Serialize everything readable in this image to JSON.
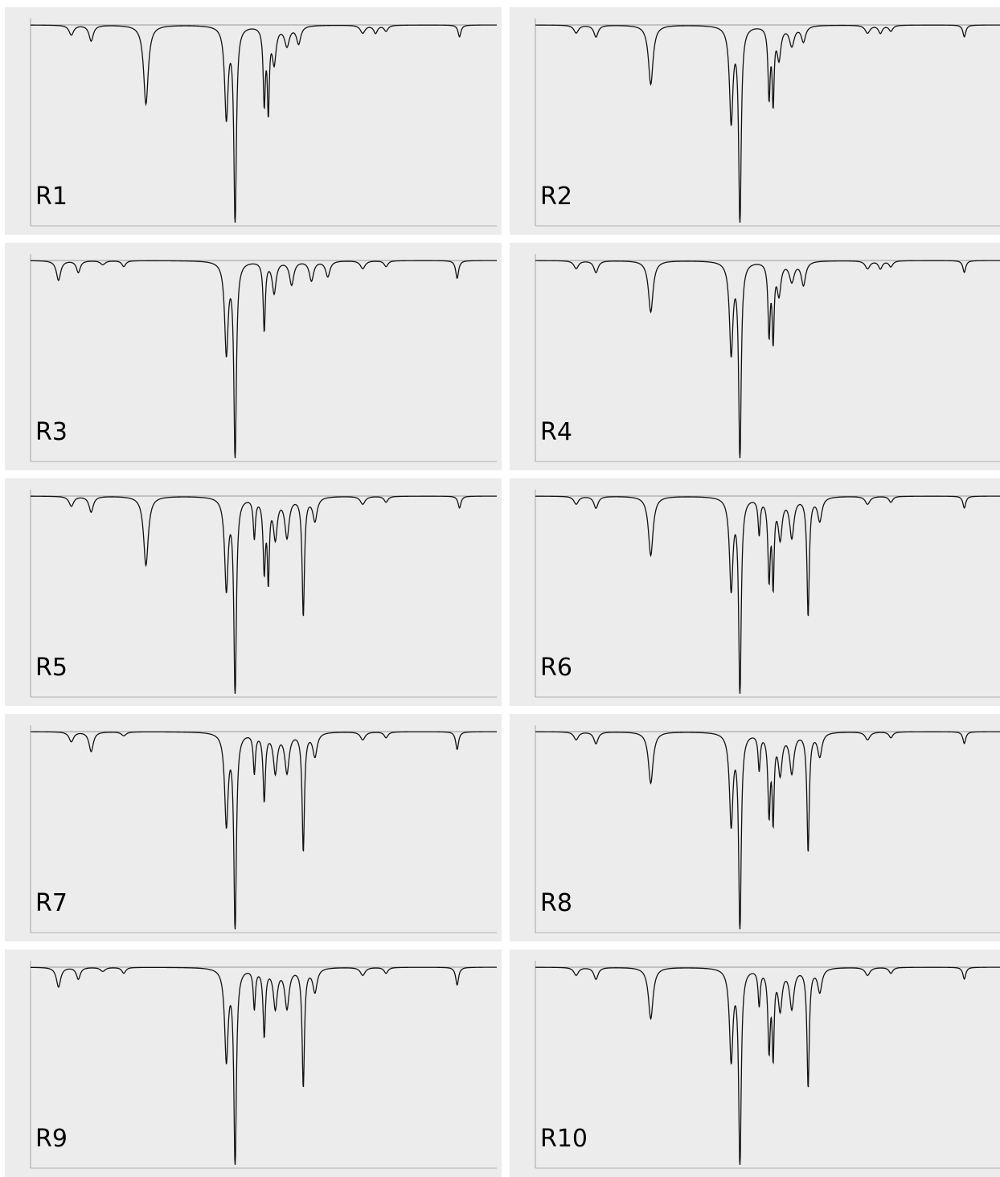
{
  "chart_data": {
    "type": "line",
    "panels": [
      {
        "label": "R1",
        "peaks": [
          [
            3650,
            0.05,
            24
          ],
          [
            3480,
            0.08,
            22
          ],
          [
            3010,
            0.4,
            24
          ],
          [
            2320,
            0.46,
            18
          ],
          [
            2245,
            1.0,
            13
          ],
          [
            1995,
            0.38,
            11
          ],
          [
            1960,
            0.41,
            10
          ],
          [
            1910,
            0.18,
            20
          ],
          [
            1800,
            0.1,
            25
          ],
          [
            1700,
            0.09,
            22
          ],
          [
            1150,
            0.04,
            25
          ],
          [
            1040,
            0.04,
            20
          ],
          [
            950,
            0.03,
            20
          ],
          [
            320,
            0.06,
            15
          ]
        ]
      },
      {
        "label": "R2",
        "peaks": [
          [
            3650,
            0.04,
            24
          ],
          [
            3480,
            0.06,
            22
          ],
          [
            3010,
            0.3,
            24
          ],
          [
            2320,
            0.48,
            18
          ],
          [
            2245,
            1.0,
            13
          ],
          [
            1995,
            0.35,
            11
          ],
          [
            1960,
            0.37,
            10
          ],
          [
            1910,
            0.16,
            20
          ],
          [
            1800,
            0.1,
            25
          ],
          [
            1700,
            0.08,
            22
          ],
          [
            1150,
            0.04,
            25
          ],
          [
            1040,
            0.04,
            20
          ],
          [
            950,
            0.03,
            20
          ],
          [
            320,
            0.06,
            15
          ]
        ]
      },
      {
        "label": "R3",
        "peaks": [
          [
            3760,
            0.1,
            22
          ],
          [
            3590,
            0.06,
            20
          ],
          [
            3380,
            0.02,
            25
          ],
          [
            3200,
            0.03,
            20
          ],
          [
            2320,
            0.46,
            18
          ],
          [
            2245,
            1.0,
            13
          ],
          [
            1995,
            0.35,
            11
          ],
          [
            1910,
            0.16,
            20
          ],
          [
            1760,
            0.12,
            22
          ],
          [
            1590,
            0.1,
            22
          ],
          [
            1450,
            0.08,
            22
          ],
          [
            1150,
            0.04,
            25
          ],
          [
            950,
            0.03,
            20
          ],
          [
            340,
            0.09,
            15
          ]
        ]
      },
      {
        "label": "R4",
        "peaks": [
          [
            3650,
            0.04,
            24
          ],
          [
            3480,
            0.06,
            22
          ],
          [
            3010,
            0.26,
            24
          ],
          [
            2320,
            0.46,
            18
          ],
          [
            2245,
            1.0,
            13
          ],
          [
            1995,
            0.36,
            11
          ],
          [
            1960,
            0.38,
            10
          ],
          [
            1910,
            0.16,
            20
          ],
          [
            1800,
            0.1,
            25
          ],
          [
            1700,
            0.12,
            22
          ],
          [
            1150,
            0.04,
            25
          ],
          [
            1040,
            0.04,
            20
          ],
          [
            950,
            0.03,
            20
          ],
          [
            320,
            0.06,
            15
          ]
        ]
      },
      {
        "label": "R5",
        "peaks": [
          [
            3650,
            0.05,
            24
          ],
          [
            3480,
            0.08,
            22
          ],
          [
            3010,
            0.35,
            24
          ],
          [
            2320,
            0.46,
            18
          ],
          [
            2245,
            1.0,
            13
          ],
          [
            2080,
            0.2,
            11
          ],
          [
            1995,
            0.36,
            12
          ],
          [
            1960,
            0.4,
            10
          ],
          [
            1900,
            0.2,
            20
          ],
          [
            1800,
            0.2,
            22
          ],
          [
            1660,
            0.6,
            12
          ],
          [
            1560,
            0.12,
            22
          ],
          [
            1150,
            0.04,
            25
          ],
          [
            950,
            0.03,
            20
          ],
          [
            320,
            0.06,
            15
          ]
        ]
      },
      {
        "label": "R6",
        "peaks": [
          [
            3650,
            0.04,
            24
          ],
          [
            3480,
            0.06,
            22
          ],
          [
            3010,
            0.3,
            24
          ],
          [
            2320,
            0.46,
            18
          ],
          [
            2245,
            1.0,
            13
          ],
          [
            2080,
            0.18,
            11
          ],
          [
            1995,
            0.4,
            12
          ],
          [
            1960,
            0.42,
            10
          ],
          [
            1900,
            0.2,
            20
          ],
          [
            1800,
            0.2,
            22
          ],
          [
            1660,
            0.6,
            12
          ],
          [
            1560,
            0.12,
            22
          ],
          [
            1150,
            0.04,
            25
          ],
          [
            950,
            0.03,
            20
          ],
          [
            320,
            0.06,
            15
          ]
        ]
      },
      {
        "label": "R7",
        "peaks": [
          [
            3650,
            0.05,
            24
          ],
          [
            3480,
            0.1,
            22
          ],
          [
            3200,
            0.02,
            25
          ],
          [
            2320,
            0.46,
            18
          ],
          [
            2245,
            1.0,
            13
          ],
          [
            2080,
            0.2,
            11
          ],
          [
            1995,
            0.34,
            12
          ],
          [
            1900,
            0.2,
            20
          ],
          [
            1800,
            0.2,
            22
          ],
          [
            1660,
            0.6,
            12
          ],
          [
            1560,
            0.12,
            22
          ],
          [
            1150,
            0.04,
            25
          ],
          [
            950,
            0.03,
            20
          ],
          [
            340,
            0.09,
            15
          ]
        ]
      },
      {
        "label": "R8",
        "peaks": [
          [
            3650,
            0.04,
            24
          ],
          [
            3480,
            0.06,
            22
          ],
          [
            3010,
            0.26,
            24
          ],
          [
            2320,
            0.46,
            18
          ],
          [
            2245,
            1.0,
            13
          ],
          [
            2080,
            0.18,
            11
          ],
          [
            1995,
            0.4,
            12
          ],
          [
            1960,
            0.42,
            10
          ],
          [
            1900,
            0.2,
            20
          ],
          [
            1800,
            0.2,
            22
          ],
          [
            1660,
            0.6,
            12
          ],
          [
            1560,
            0.12,
            22
          ],
          [
            1150,
            0.04,
            25
          ],
          [
            950,
            0.03,
            20
          ],
          [
            320,
            0.06,
            15
          ]
        ]
      },
      {
        "label": "R9",
        "peaks": [
          [
            3760,
            0.1,
            22
          ],
          [
            3590,
            0.06,
            20
          ],
          [
            3380,
            0.02,
            25
          ],
          [
            3200,
            0.03,
            20
          ],
          [
            2320,
            0.46,
            18
          ],
          [
            2245,
            1.0,
            13
          ],
          [
            2080,
            0.2,
            11
          ],
          [
            1995,
            0.34,
            12
          ],
          [
            1900,
            0.2,
            20
          ],
          [
            1800,
            0.2,
            22
          ],
          [
            1660,
            0.6,
            12
          ],
          [
            1560,
            0.12,
            22
          ],
          [
            1150,
            0.04,
            25
          ],
          [
            950,
            0.03,
            20
          ],
          [
            340,
            0.09,
            15
          ]
        ]
      },
      {
        "label": "R10",
        "peaks": [
          [
            3650,
            0.04,
            24
          ],
          [
            3480,
            0.06,
            22
          ],
          [
            3010,
            0.26,
            24
          ],
          [
            2320,
            0.46,
            18
          ],
          [
            2245,
            1.0,
            13
          ],
          [
            2080,
            0.18,
            11
          ],
          [
            1995,
            0.4,
            12
          ],
          [
            1960,
            0.42,
            10
          ],
          [
            1900,
            0.2,
            20
          ],
          [
            1800,
            0.2,
            22
          ],
          [
            1660,
            0.6,
            12
          ],
          [
            1560,
            0.12,
            22
          ],
          [
            1150,
            0.04,
            25
          ],
          [
            950,
            0.03,
            20
          ],
          [
            320,
            0.06,
            15
          ]
        ]
      }
    ],
    "xrange": [
      4000,
      0
    ],
    "line_color": "#111111",
    "background_color": "#ececec",
    "baseline_color": "#999999"
  }
}
